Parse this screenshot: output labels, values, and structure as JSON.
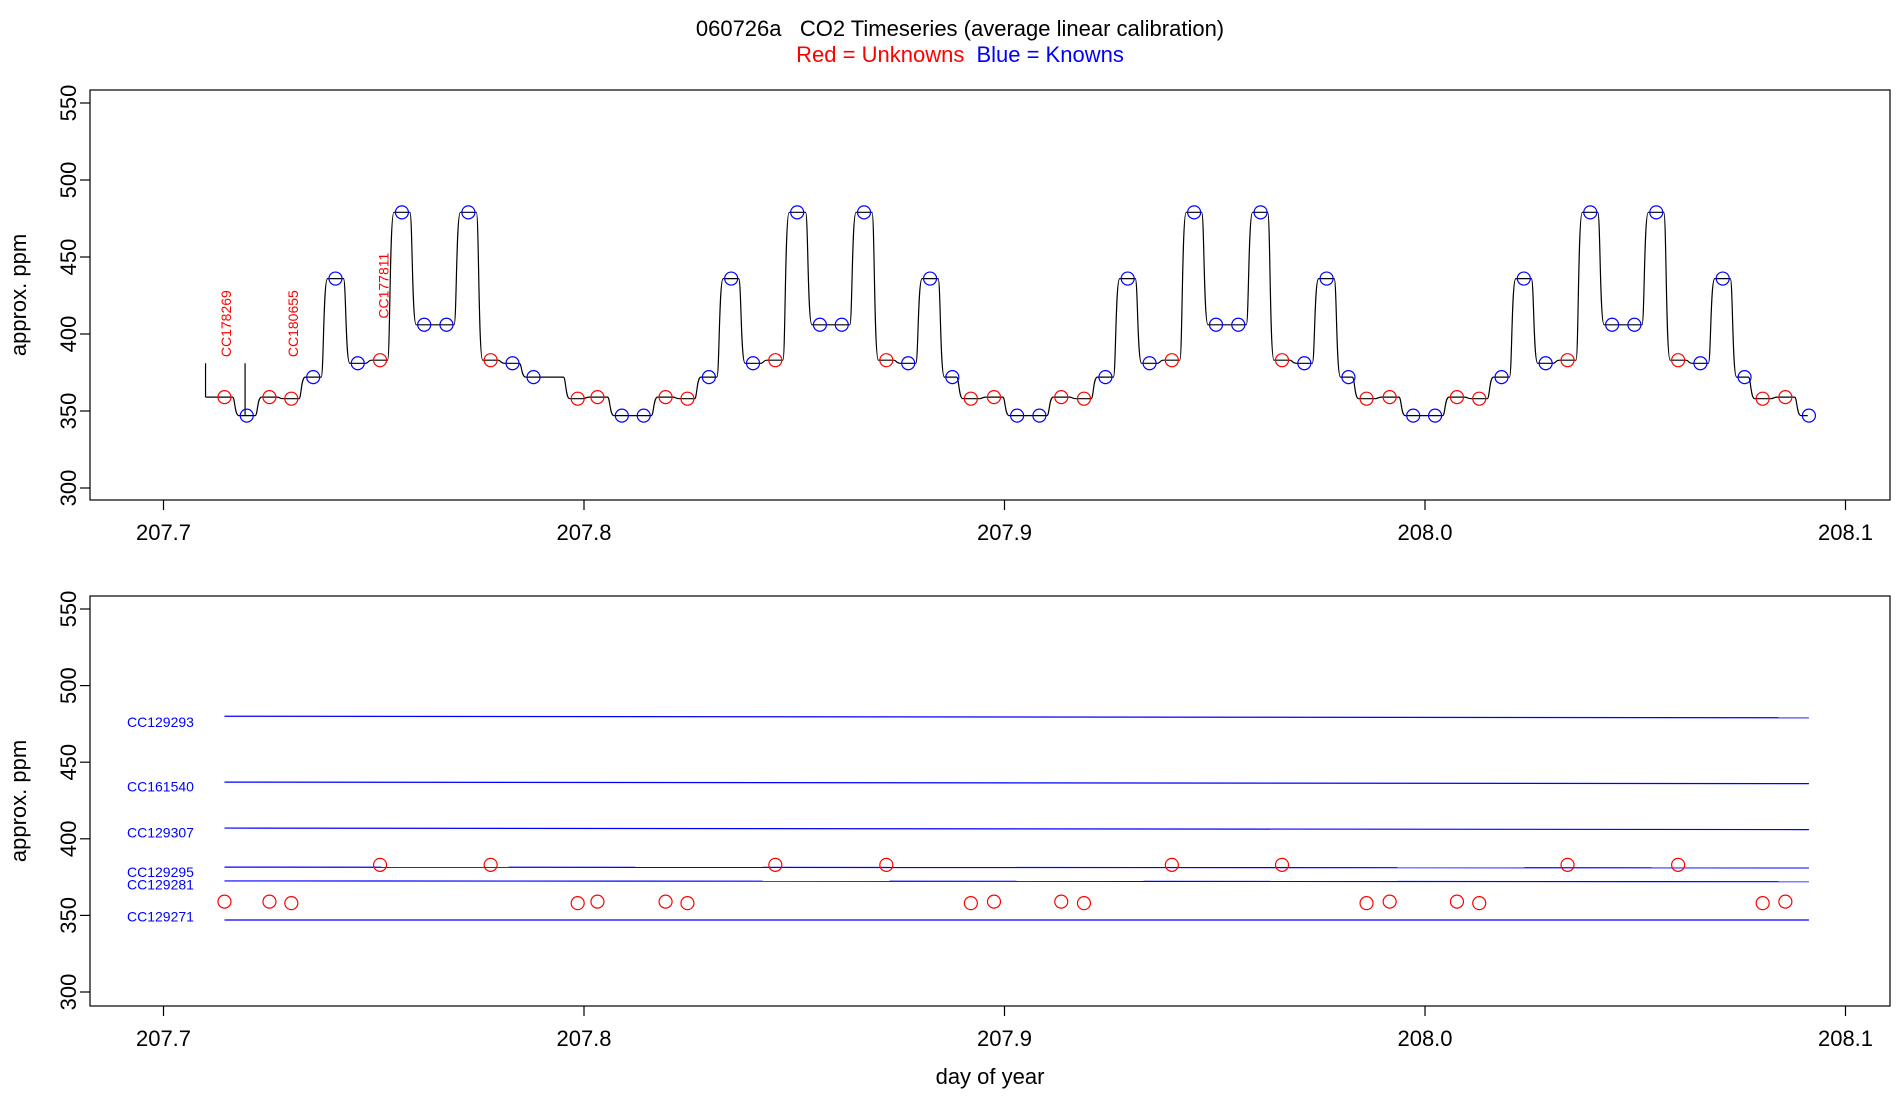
{
  "figure": {
    "title": "060726a   CO2 Timeseries (average linear calibration)",
    "legend": {
      "unknowns_label": "Red = Unknowns",
      "knowns_label": "Blue = Knowns",
      "unknowns_color": "#ff0000",
      "knowns_color": "#0000ff"
    },
    "trace_color": "#000000"
  },
  "chart_data": [
    {
      "type": "line",
      "panel": "top",
      "title": "060726a   CO2 Timeseries (average linear calibration)",
      "xlabel": "",
      "ylabel": "approx. ppm",
      "xlim": [
        207.7,
        208.1
      ],
      "ylim": [
        300,
        550
      ],
      "xticks": [
        207.7,
        207.8,
        207.9,
        208.0,
        208.1
      ],
      "xtick_labels": [
        "207.7",
        "207.8",
        "207.9",
        "208.0",
        "208.1"
      ],
      "yticks": [
        300,
        350,
        400,
        450,
        500,
        550
      ],
      "ytick_labels": [
        "300",
        "350",
        "400",
        "450",
        "500",
        "550"
      ],
      "grid": false,
      "trace_x_start": 207.71,
      "trace_start_spike": [
        359,
        381
      ],
      "trace_mid_spike": [
        347,
        381
      ],
      "trace_end_x": 208.091,
      "series": [
        {
          "name": "Unknowns",
          "color": "#ff0000",
          "marker": "open-circle",
          "points": [
            [
              207.7145,
              359
            ],
            [
              207.7252,
              359
            ],
            [
              207.7304,
              358
            ],
            [
              207.7515,
              383
            ],
            [
              207.7778,
              383
            ],
            [
              207.7985,
              358
            ],
            [
              207.8032,
              359
            ],
            [
              207.8194,
              359
            ],
            [
              207.8246,
              358
            ],
            [
              207.8455,
              383
            ],
            [
              207.8719,
              383
            ],
            [
              207.892,
              358
            ],
            [
              207.8975,
              359
            ],
            [
              207.9135,
              359
            ],
            [
              207.9189,
              358
            ],
            [
              207.9398,
              383
            ],
            [
              207.966,
              383
            ],
            [
              207.9861,
              358
            ],
            [
              207.9916,
              359
            ],
            [
              208.0076,
              359
            ],
            [
              208.0129,
              358
            ],
            [
              208.0339,
              383
            ],
            [
              208.0602,
              383
            ],
            [
              208.0803,
              358
            ],
            [
              208.0857,
              359
            ]
          ]
        },
        {
          "name": "Knowns",
          "color": "#0000ff",
          "marker": "open-circle",
          "points": [
            [
              207.7198,
              347
            ],
            [
              207.7356,
              372
            ],
            [
              207.7409,
              436
            ],
            [
              207.7462,
              381
            ],
            [
              207.7567,
              479
            ],
            [
              207.762,
              406
            ],
            [
              207.7673,
              406
            ],
            [
              207.7725,
              479
            ],
            [
              207.783,
              381
            ],
            [
              207.788,
              372
            ],
            [
              207.809,
              347
            ],
            [
              207.8142,
              347
            ],
            [
              207.8297,
              372
            ],
            [
              207.835,
              436
            ],
            [
              207.8402,
              381
            ],
            [
              207.8507,
              479
            ],
            [
              207.8561,
              406
            ],
            [
              207.8613,
              406
            ],
            [
              207.8666,
              479
            ],
            [
              207.8771,
              381
            ],
            [
              207.8823,
              436
            ],
            [
              207.8876,
              372
            ],
            [
              207.903,
              347
            ],
            [
              207.9083,
              347
            ],
            [
              207.924,
              372
            ],
            [
              207.9293,
              436
            ],
            [
              207.9345,
              381
            ],
            [
              207.9451,
              479
            ],
            [
              207.9503,
              406
            ],
            [
              207.9556,
              406
            ],
            [
              207.9609,
              479
            ],
            [
              207.9713,
              381
            ],
            [
              207.9766,
              436
            ],
            [
              207.9818,
              372
            ],
            [
              207.9972,
              347
            ],
            [
              208.0024,
              347
            ],
            [
              208.0182,
              372
            ],
            [
              208.0235,
              436
            ],
            [
              208.0287,
              381
            ],
            [
              208.0393,
              479
            ],
            [
              208.0445,
              406
            ],
            [
              208.0498,
              406
            ],
            [
              208.055,
              479
            ],
            [
              208.0655,
              381
            ],
            [
              208.0708,
              436
            ],
            [
              208.076,
              372
            ],
            [
              208.0913,
              347
            ]
          ]
        }
      ],
      "annotations": [
        {
          "text": "CC178269",
          "x": 207.716,
          "y": 385,
          "color": "#ff0000",
          "rotate": -90
        },
        {
          "text": "CC180655",
          "x": 207.732,
          "y": 385,
          "color": "#ff0000",
          "rotate": -90
        },
        {
          "text": "CC177811",
          "x": 207.7535,
          "y": 410,
          "color": "#ff0000",
          "rotate": -90
        }
      ]
    },
    {
      "type": "scatter",
      "panel": "bottom",
      "xlabel": "day of year",
      "ylabel": "approx. ppm",
      "xlim": [
        207.7,
        208.1
      ],
      "ylim": [
        300,
        550
      ],
      "xticks": [
        207.7,
        207.8,
        207.9,
        208.0,
        208.1
      ],
      "xtick_labels": [
        "207.7",
        "207.8",
        "207.9",
        "208.0",
        "208.1"
      ],
      "yticks": [
        300,
        350,
        400,
        450,
        500,
        550
      ],
      "ytick_labels": [
        "300",
        "350",
        "400",
        "450",
        "500",
        "550"
      ],
      "grid": false,
      "reference_lines": [
        {
          "name": "CC129293",
          "x_start": 207.7145,
          "x_end": 208.0913,
          "y_start": 480,
          "y_end": 479,
          "color": "#0000ff"
        },
        {
          "name": "CC161540",
          "x_start": 207.7145,
          "x_end": 208.0913,
          "y_start": 437,
          "y_end": 436,
          "color": "#0000ff"
        },
        {
          "name": "CC129307",
          "x_start": 207.7145,
          "x_end": 208.0913,
          "y_start": 407,
          "y_end": 406,
          "color": "#0000ff"
        },
        {
          "name": "CC129295",
          "x_start": 207.7145,
          "x_end": 208.0913,
          "y_start": 381.5,
          "y_end": 381,
          "color": "#0000ff"
        },
        {
          "name": "CC129281",
          "x_start": 207.7145,
          "x_end": 208.0913,
          "y_start": 372.5,
          "y_end": 372,
          "color": "#0000ff"
        },
        {
          "name": "CC129271",
          "x_start": 207.7145,
          "x_end": 208.0913,
          "y_start": 347,
          "y_end": 347,
          "color": "#0000ff"
        }
      ],
      "reference_label_y": [
        473,
        431,
        401,
        375,
        367,
        346
      ],
      "series": [
        {
          "name": "Unknowns",
          "color": "#ff0000",
          "marker": "open-circle",
          "points": [
            [
              207.7145,
              359
            ],
            [
              207.7252,
              359
            ],
            [
              207.7304,
              358
            ],
            [
              207.7515,
              383
            ],
            [
              207.7778,
              383
            ],
            [
              207.7985,
              358
            ],
            [
              207.8032,
              359
            ],
            [
              207.8194,
              359
            ],
            [
              207.8246,
              358
            ],
            [
              207.8455,
              383
            ],
            [
              207.8719,
              383
            ],
            [
              207.892,
              358
            ],
            [
              207.8975,
              359
            ],
            [
              207.9135,
              359
            ],
            [
              207.9189,
              358
            ],
            [
              207.9398,
              383
            ],
            [
              207.966,
              383
            ],
            [
              207.9861,
              358
            ],
            [
              207.9916,
              359
            ],
            [
              208.0076,
              359
            ],
            [
              208.0129,
              358
            ],
            [
              208.0339,
              383
            ],
            [
              208.0602,
              383
            ],
            [
              208.0803,
              358
            ],
            [
              208.0857,
              359
            ]
          ]
        }
      ]
    }
  ]
}
